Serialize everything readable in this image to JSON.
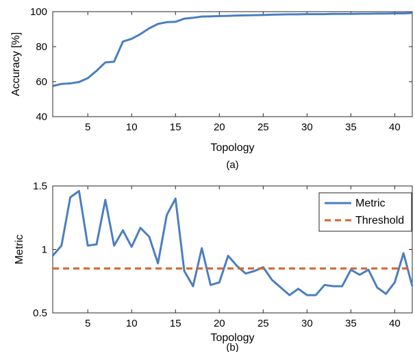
{
  "colors": {
    "metric": "#4a7ec0",
    "threshold": "#d4622c",
    "axis": "#262626",
    "background": "#ffffff"
  },
  "chart_data": [
    {
      "type": "line",
      "caption": "(a)",
      "xlabel": "Topology",
      "ylabel": "Accuracy [%]",
      "xlim": [
        1,
        42
      ],
      "ylim": [
        40,
        100
      ],
      "xticks": [
        5,
        10,
        15,
        20,
        25,
        30,
        35,
        40
      ],
      "yticks": [
        40,
        60,
        80,
        100
      ],
      "grid": false,
      "legend": null,
      "series": [
        {
          "color": "#4a7ec0",
          "x": [
            1,
            2,
            3,
            4,
            5,
            6,
            7,
            8,
            9,
            10,
            11,
            12,
            13,
            14,
            15,
            16,
            17,
            18,
            19,
            20,
            21,
            22,
            23,
            24,
            25,
            26,
            27,
            28,
            29,
            30,
            31,
            32,
            33,
            34,
            35,
            36,
            37,
            38,
            39,
            40,
            41,
            42
          ],
          "y": [
            57.5,
            58.7,
            59,
            59.8,
            62,
            66.2,
            71,
            71.4,
            82.9,
            84.5,
            87.2,
            90.5,
            93,
            94,
            94.2,
            96,
            96.5,
            97.2,
            97.3,
            97.5,
            97.6,
            97.8,
            97.9,
            98,
            98.1,
            98.3,
            98.4,
            98.5,
            98.5,
            98.6,
            98.6,
            98.6,
            98.7,
            98.7,
            98.7,
            98.8,
            98.8,
            98.9,
            98.9,
            99,
            99,
            99.2
          ]
        }
      ]
    },
    {
      "type": "line",
      "caption": "(b)",
      "xlabel": "Topology",
      "ylabel": "Metric",
      "xlim": [
        1,
        42
      ],
      "ylim": [
        0.5,
        1.5
      ],
      "xticks": [
        5,
        10,
        15,
        20,
        25,
        30,
        35,
        40
      ],
      "yticks": [
        0.5,
        1,
        1.5
      ],
      "ytick_labels": [
        "0.5",
        "1",
        "1.5"
      ],
      "grid": false,
      "legend": "top-right",
      "series": [
        {
          "name": "Metric",
          "color": "#4a7ec0",
          "style": "solid",
          "x": [
            1,
            2,
            3,
            4,
            5,
            6,
            7,
            8,
            9,
            10,
            11,
            12,
            13,
            14,
            15,
            16,
            17,
            18,
            19,
            20,
            21,
            22,
            23,
            24,
            25,
            26,
            27,
            28,
            29,
            30,
            31,
            32,
            33,
            34,
            35,
            36,
            37,
            38,
            39,
            40,
            41,
            42
          ],
          "y": [
            0.95,
            1.03,
            1.41,
            1.46,
            1.03,
            1.04,
            1.39,
            1.03,
            1.15,
            1.02,
            1.17,
            1.1,
            0.89,
            1.27,
            1.4,
            0.83,
            0.71,
            1.01,
            0.72,
            0.74,
            0.95,
            0.87,
            0.81,
            0.83,
            0.86,
            0.76,
            0.7,
            0.64,
            0.69,
            0.64,
            0.64,
            0.72,
            0.71,
            0.71,
            0.84,
            0.8,
            0.84,
            0.7,
            0.65,
            0.74,
            0.97,
            0.71
          ]
        },
        {
          "name": "Threshold",
          "color": "#d4622c",
          "style": "dashed",
          "x": [
            1,
            42
          ],
          "y": [
            0.85,
            0.85
          ]
        }
      ]
    }
  ]
}
